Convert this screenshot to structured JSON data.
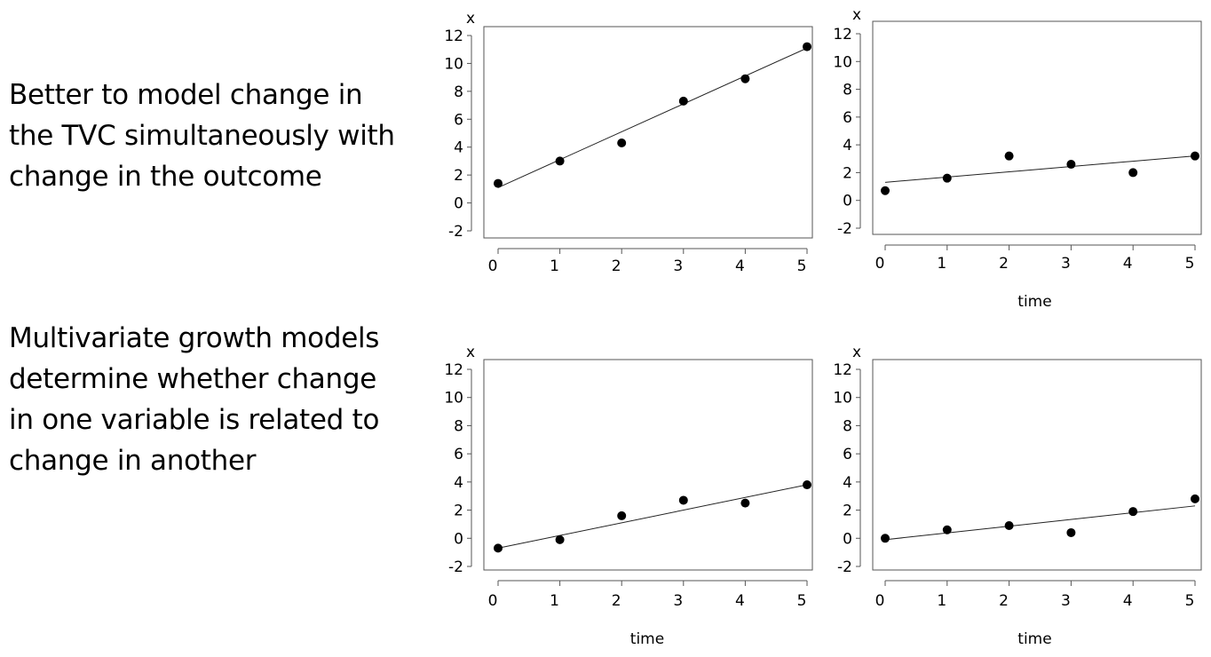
{
  "text": {
    "top": "Better to model change in the TVC simultaneously with change in the outcome",
    "bottom": "Multivariate growth models determine whether change in one variable is related to change in another"
  },
  "chart_data": [
    {
      "type": "scatter",
      "name": "top-left",
      "ylabel": "x",
      "xlabel": "",
      "xlim": [
        0,
        5
      ],
      "ylim": [
        -2,
        12
      ],
      "xticks": [
        0,
        1,
        2,
        3,
        4,
        5
      ],
      "yticks": [
        -2,
        0,
        2,
        4,
        6,
        8,
        10,
        12
      ],
      "points": {
        "x": [
          0,
          1,
          2,
          3,
          4,
          5
        ],
        "y": [
          1.4,
          3.0,
          4.3,
          7.3,
          8.9,
          11.2
        ]
      },
      "fit_line": {
        "x": [
          0,
          5
        ],
        "y": [
          1.1,
          11.1
        ]
      }
    },
    {
      "type": "scatter",
      "name": "top-right",
      "ylabel": "x",
      "xlabel": "time",
      "xlim": [
        0,
        5
      ],
      "ylim": [
        -2,
        12
      ],
      "xticks": [
        0,
        1,
        2,
        3,
        4,
        5
      ],
      "yticks": [
        -2,
        0,
        2,
        4,
        6,
        8,
        10,
        12
      ],
      "points": {
        "x": [
          0,
          1,
          2,
          3,
          4,
          5
        ],
        "y": [
          0.7,
          1.6,
          3.2,
          2.6,
          2.0,
          3.2
        ]
      },
      "fit_line": {
        "x": [
          0,
          5
        ],
        "y": [
          1.3,
          3.2
        ]
      }
    },
    {
      "type": "scatter",
      "name": "bottom-left",
      "ylabel": "x",
      "xlabel": "time",
      "xlim": [
        0,
        5
      ],
      "ylim": [
        -2,
        12
      ],
      "xticks": [
        0,
        1,
        2,
        3,
        4,
        5
      ],
      "yticks": [
        -2,
        0,
        2,
        4,
        6,
        8,
        10,
        12
      ],
      "points": {
        "x": [
          0,
          1,
          2,
          3,
          4,
          5
        ],
        "y": [
          -0.7,
          -0.1,
          1.6,
          2.7,
          2.5,
          3.8
        ]
      },
      "fit_line": {
        "x": [
          0,
          5
        ],
        "y": [
          -0.7,
          3.8
        ]
      }
    },
    {
      "type": "scatter",
      "name": "bottom-right",
      "ylabel": "x",
      "xlabel": "time",
      "xlim": [
        0,
        5
      ],
      "ylim": [
        -2,
        12
      ],
      "xticks": [
        0,
        1,
        2,
        3,
        4,
        5
      ],
      "yticks": [
        -2,
        0,
        2,
        4,
        6,
        8,
        10,
        12
      ],
      "points": {
        "x": [
          0,
          1,
          2,
          3,
          4,
          5
        ],
        "y": [
          0.0,
          0.6,
          0.9,
          0.4,
          1.9,
          2.8
        ]
      },
      "fit_line": {
        "x": [
          0,
          5
        ],
        "y": [
          -0.1,
          2.3
        ]
      }
    }
  ]
}
